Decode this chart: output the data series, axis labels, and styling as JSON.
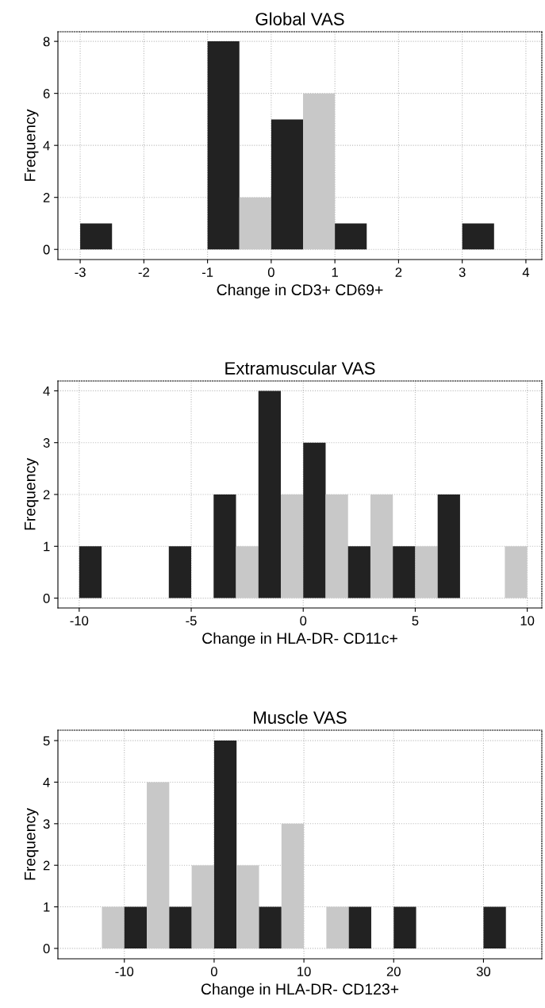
{
  "chart_data": [
    {
      "type": "histogram",
      "title": "Global VAS",
      "xlabel": "Change in CD3+ CD69+",
      "ylabel": "Frequency",
      "bins": [
        -3,
        -2.5,
        -2,
        -1.5,
        -1,
        -0.5,
        0,
        0.5,
        1,
        1.5,
        2,
        2.5,
        3,
        3.5
      ],
      "values": [
        1,
        0,
        0,
        0,
        8,
        2,
        5,
        6,
        1,
        0,
        0,
        0,
        1
      ],
      "colors": [
        "#222222",
        "#c8c8c8",
        "#222222",
        "#c8c8c8",
        "#222222",
        "#c8c8c8",
        "#222222",
        "#c8c8c8",
        "#222222",
        "#c8c8c8",
        "#222222",
        "#c8c8c8",
        "#222222"
      ],
      "xlim": [
        -3.35,
        4.25
      ],
      "ylim": [
        -0.39,
        8.37
      ],
      "xticks": [
        -3,
        -2,
        -1,
        0,
        1,
        2,
        3,
        4
      ],
      "yticks": [
        0,
        2,
        4,
        6,
        8
      ],
      "grid": true
    },
    {
      "type": "histogram",
      "title": "Extramuscular VAS",
      "xlabel": "Change in HLA-DR- CD11c+",
      "ylabel": "Frequency",
      "bins": [
        -10,
        -9,
        -8,
        -7,
        -6,
        -5,
        -4,
        -3,
        -2,
        -1,
        0,
        1,
        2,
        3,
        4,
        5,
        6,
        7,
        8,
        9,
        10
      ],
      "values": [
        1,
        0,
        0,
        0,
        1,
        0,
        2,
        1,
        4,
        2,
        3,
        2,
        1,
        2,
        1,
        1,
        2,
        0,
        0,
        1
      ],
      "colors": [
        "#222222",
        "#c8c8c8",
        "#222222",
        "#c8c8c8",
        "#222222",
        "#c8c8c8",
        "#222222",
        "#c8c8c8",
        "#222222",
        "#c8c8c8",
        "#222222",
        "#c8c8c8",
        "#222222",
        "#c8c8c8",
        "#222222",
        "#c8c8c8",
        "#222222",
        "#c8c8c8",
        "#222222",
        "#c8c8c8"
      ],
      "xlim": [
        -10.95,
        10.65
      ],
      "ylim": [
        -0.19,
        4.19
      ],
      "xticks": [
        -10,
        -5,
        0,
        5,
        10
      ],
      "yticks": [
        0,
        1,
        2,
        3,
        4
      ],
      "grid": true
    },
    {
      "type": "histogram",
      "title": "Muscle VAS",
      "xlabel": "Change in HLA-DR- CD123+",
      "ylabel": "Frequency",
      "bins": [
        -12.5,
        -10,
        -7.5,
        -5,
        -2.5,
        0,
        2.5,
        5,
        7.5,
        10,
        12.5,
        15,
        17.5,
        20,
        22.5,
        25,
        27.5,
        30,
        32.5
      ],
      "values": [
        1,
        1,
        4,
        1,
        2,
        5,
        2,
        1,
        3,
        0,
        1,
        1,
        0,
        1,
        0,
        0,
        0,
        1
      ],
      "colors": [
        "#c8c8c8",
        "#222222",
        "#c8c8c8",
        "#222222",
        "#c8c8c8",
        "#222222",
        "#c8c8c8",
        "#222222",
        "#c8c8c8",
        "#222222",
        "#c8c8c8",
        "#222222",
        "#c8c8c8",
        "#222222",
        "#c8c8c8",
        "#222222",
        "#c8c8c8",
        "#222222"
      ],
      "xlim": [
        -17.4,
        36.5
      ],
      "ylim": [
        -0.25,
        5.25
      ],
      "xticks": [
        -10,
        0,
        10,
        20,
        30
      ],
      "yticks": [
        0,
        1,
        2,
        3,
        4,
        5
      ],
      "grid": true
    }
  ]
}
